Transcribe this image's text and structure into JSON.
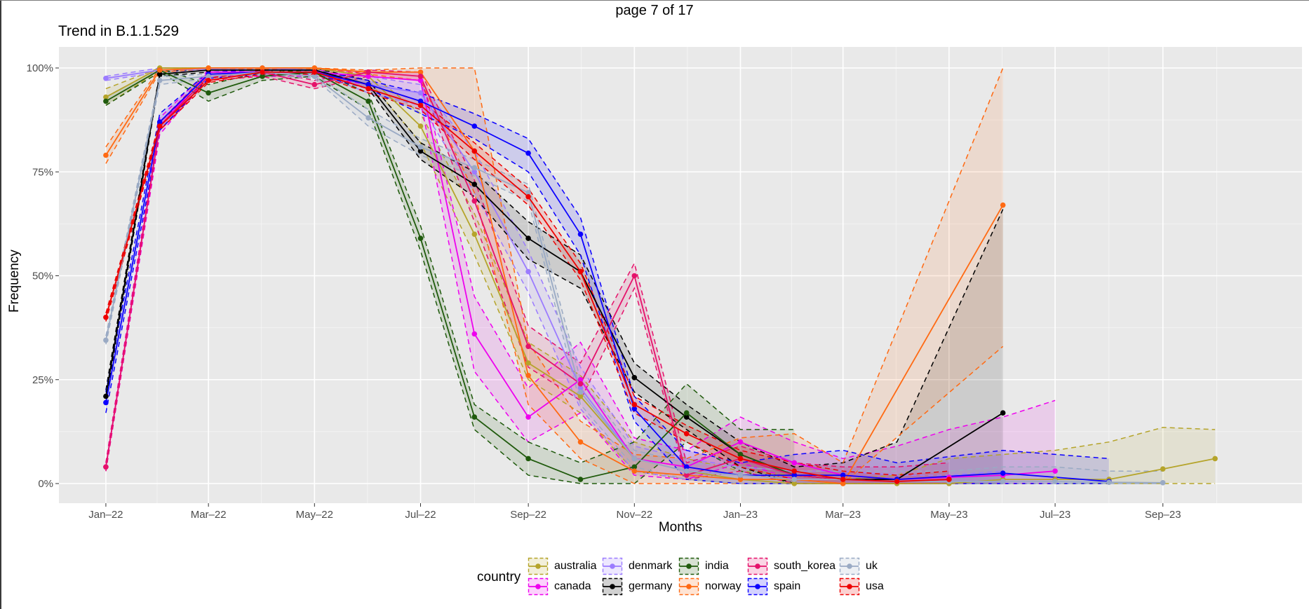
{
  "header": {
    "page_label": "page 7 of 17"
  },
  "chart_data": {
    "type": "line",
    "title": "Trend in B.1.1.529",
    "xlabel": "Months",
    "ylabel": "Frequency",
    "ylim": [
      0,
      100
    ],
    "y_ticks": [
      0,
      25,
      50,
      75,
      100
    ],
    "y_tick_labels": [
      "0%",
      "25%",
      "50%",
      "75%",
      "100%"
    ],
    "x_ticks": [
      "2022-01",
      "2022-03",
      "2022-05",
      "2022-07",
      "2022-09",
      "2022-11",
      "2023-01",
      "2023-03",
      "2023-05",
      "2023-07",
      "2023-09"
    ],
    "x_tick_labels": [
      "Jan–22",
      "Mar–22",
      "May–22",
      "Jul–22",
      "Sep–22",
      "Nov–22",
      "Jan–23",
      "Mar–23",
      "May–23",
      "Jul–23",
      "Sep–23"
    ],
    "xlim": [
      "2021-12-05",
      "2023-11-20"
    ],
    "grid": true,
    "legend_title": "country",
    "legend_position": "bottom",
    "series": [
      {
        "name": "australia",
        "color": "#b5a42a",
        "x": [
          "2022-01",
          "2022-02",
          "2022-03",
          "2022-04",
          "2022-05",
          "2022-06",
          "2022-07",
          "2022-08",
          "2022-09",
          "2022-10",
          "2022-11",
          "2022-12",
          "2023-01",
          "2023-02",
          "2023-03",
          "2023-04",
          "2023-05",
          "2023-06",
          "2023-07",
          "2023-08",
          "2023-09",
          "2023-10"
        ],
        "y": [
          93,
          100,
          100,
          100,
          100,
          98,
          86,
          60,
          29,
          21,
          6,
          3,
          1,
          0,
          0,
          0,
          0,
          1,
          1,
          1,
          3.5,
          6
        ],
        "lower": [
          91,
          99.5,
          99.8,
          99.8,
          99.8,
          97,
          82,
          55,
          25,
          17,
          3,
          1,
          0,
          0,
          0,
          0,
          0,
          0,
          0,
          0,
          0,
          0
        ],
        "upper": [
          95,
          100,
          100,
          100,
          100,
          99,
          89,
          65,
          34,
          26,
          10,
          6,
          3,
          2,
          1,
          2,
          6,
          7,
          8,
          10,
          13.5,
          13
        ]
      },
      {
        "name": "canada",
        "color": "#ee00ee",
        "x": [
          "2022-01",
          "2022-02",
          "2022-03",
          "2022-04",
          "2022-05",
          "2022-06",
          "2022-07",
          "2022-08",
          "2022-09",
          "2022-10",
          "2022-11",
          "2022-12",
          "2023-01",
          "2023-02",
          "2023-03",
          "2023-04",
          "2023-05",
          "2023-06",
          "2023-07"
        ],
        "y": [
          4,
          86,
          99,
          99,
          99,
          98,
          97,
          36,
          16,
          25,
          6,
          4,
          10,
          5,
          2,
          1,
          1.5,
          2,
          3
        ],
        "lower": [
          3,
          84,
          98,
          98,
          98,
          96,
          92,
          27,
          10,
          17,
          2,
          1,
          5,
          1,
          0,
          0,
          0,
          0,
          0
        ],
        "upper": [
          5,
          88,
          99.5,
          99.5,
          99.5,
          99,
          99,
          45,
          23,
          34,
          11,
          8,
          16,
          10,
          6,
          9,
          13,
          16,
          20
        ]
      },
      {
        "name": "denmark",
        "color": "#9b7bff",
        "x": [
          "2022-01",
          "2022-02",
          "2022-03",
          "2022-04",
          "2022-05",
          "2022-06",
          "2022-07",
          "2022-08",
          "2022-09",
          "2022-10",
          "2022-11",
          "2022-12",
          "2023-01",
          "2023-02",
          "2023-03",
          "2023-04",
          "2023-05",
          "2023-06"
        ],
        "y": [
          97.5,
          99.5,
          99.8,
          100,
          99.5,
          96,
          94,
          75,
          51,
          23,
          6,
          3,
          2,
          1,
          1,
          0.5,
          0.5,
          0.5
        ],
        "lower": [
          97,
          99,
          99.5,
          99.8,
          99,
          94,
          91,
          70,
          46,
          18,
          3,
          1,
          0,
          0,
          0,
          0,
          0,
          0
        ],
        "upper": [
          98,
          100,
          100,
          100,
          100,
          98,
          96,
          80,
          56,
          28,
          9,
          6,
          4,
          3,
          3,
          2,
          2,
          3
        ]
      },
      {
        "name": "germany",
        "color": "#000000",
        "x": [
          "2022-01",
          "2022-02",
          "2022-03",
          "2022-04",
          "2022-05",
          "2022-06",
          "2022-07",
          "2022-08",
          "2022-09",
          "2022-10",
          "2022-11",
          "2022-12",
          "2023-01",
          "2023-02",
          "2023-03",
          "2023-04",
          "2023-06"
        ],
        "y": [
          21,
          98.5,
          99.5,
          99.5,
          99.5,
          96,
          80,
          72,
          59,
          51,
          25.5,
          16,
          7,
          2,
          1,
          1,
          17
        ],
        "lower": [
          19.5,
          98,
          99,
          99,
          99,
          95,
          78,
          69,
          54,
          47,
          22,
          13,
          4,
          0,
          0,
          0,
          0
        ],
        "upper": [
          22.5,
          99,
          100,
          100,
          100,
          97,
          82,
          75,
          63,
          55,
          29,
          19,
          10,
          4,
          5,
          10,
          66
        ]
      },
      {
        "name": "india",
        "color": "#1f5a0c",
        "x": [
          "2022-01",
          "2022-02",
          "2022-03",
          "2022-04",
          "2022-05",
          "2022-06",
          "2022-07",
          "2022-08",
          "2022-09",
          "2022-10",
          "2022-11",
          "2022-12",
          "2023-01",
          "2023-02"
        ],
        "y": [
          92,
          99.5,
          94,
          98,
          99,
          92,
          59,
          16,
          6,
          1,
          4,
          17,
          7,
          2
        ],
        "lower": [
          91,
          99,
          92,
          97,
          98,
          90,
          56,
          13,
          2,
          0,
          0,
          10,
          3,
          0
        ],
        "upper": [
          93,
          100,
          96,
          99,
          99.5,
          94,
          62,
          19,
          10,
          5,
          10,
          24,
          13,
          13
        ]
      },
      {
        "name": "norway",
        "color": "#ff6a13",
        "x": [
          "2022-01",
          "2022-02",
          "2022-03",
          "2022-04",
          "2022-05",
          "2022-06",
          "2022-07",
          "2022-08",
          "2022-09",
          "2022-10",
          "2022-11",
          "2022-12",
          "2023-01",
          "2023-02",
          "2023-03",
          "2023-06"
        ],
        "y": [
          79,
          99.5,
          100,
          100,
          100,
          99,
          99,
          80,
          26,
          10,
          3,
          2,
          1,
          1,
          0,
          67
        ],
        "lower": [
          77,
          99,
          99.8,
          99.8,
          99.8,
          98.5,
          97,
          70,
          19,
          6,
          0,
          0,
          0,
          0,
          0,
          33
        ],
        "upper": [
          81,
          100,
          100,
          100,
          100,
          99.5,
          100,
          100,
          34,
          15,
          7,
          6,
          11,
          12,
          5,
          100
        ]
      },
      {
        "name": "south_korea",
        "color": "#e5116a",
        "x": [
          "2022-01",
          "2022-02",
          "2022-03",
          "2022-04",
          "2022-05",
          "2022-06",
          "2022-07",
          "2022-08",
          "2022-09",
          "2022-10",
          "2022-11",
          "2022-12",
          "2023-01",
          "2023-02",
          "2023-03",
          "2023-04",
          "2023-05"
        ],
        "y": [
          4,
          86,
          98,
          99,
          96,
          99,
          98,
          68,
          33,
          24,
          50,
          2,
          6,
          2,
          1,
          0.5,
          1
        ],
        "lower": [
          3,
          85,
          97,
          98,
          95,
          98,
          97,
          63,
          28,
          20,
          47,
          1,
          3,
          0,
          0,
          0,
          0
        ],
        "upper": [
          5,
          87,
          99,
          99.5,
          97,
          99.5,
          99,
          73,
          38,
          29,
          53,
          5,
          9,
          5,
          4,
          4,
          5
        ]
      },
      {
        "name": "spain",
        "color": "#0b00ff",
        "x": [
          "2022-01",
          "2022-02",
          "2022-03",
          "2022-04",
          "2022-05",
          "2022-06",
          "2022-07",
          "2022-08",
          "2022-09",
          "2022-10",
          "2022-11",
          "2022-12",
          "2023-01",
          "2023-02",
          "2023-03",
          "2023-04",
          "2023-06",
          "2023-08"
        ],
        "y": [
          19.5,
          87,
          98.5,
          99,
          99,
          96,
          92,
          86,
          79.5,
          60,
          18,
          4,
          2,
          2,
          2,
          1,
          2.5,
          0.5
        ],
        "lower": [
          17,
          85,
          97.5,
          98.5,
          98.5,
          95,
          89,
          83,
          75,
          55,
          15,
          1,
          0,
          0,
          0,
          0,
          0,
          0
        ],
        "upper": [
          22,
          89,
          99,
          99.5,
          99.5,
          97,
          94,
          89,
          83,
          64,
          21,
          8,
          5,
          7,
          8,
          5,
          8,
          6
        ]
      },
      {
        "name": "uk",
        "color": "#9aaac4",
        "x": [
          "2022-01",
          "2022-02",
          "2022-03",
          "2022-04",
          "2022-05",
          "2022-06",
          "2022-07",
          "2022-08",
          "2022-09",
          "2022-10",
          "2022-11",
          "2022-12",
          "2023-01",
          "2023-02",
          "2023-03",
          "2023-04",
          "2023-05",
          "2023-06",
          "2023-07",
          "2023-08",
          "2023-09"
        ],
        "y": [
          34.5,
          97,
          98,
          99,
          98,
          88,
          81,
          76,
          70,
          22,
          6,
          3,
          2,
          1,
          1,
          0.5,
          0.5,
          0.5,
          0.5,
          0.3,
          0.2
        ],
        "lower": [
          33.5,
          96,
          97.5,
          98.5,
          97.5,
          86,
          79,
          74,
          68,
          19,
          4,
          1,
          0,
          0,
          0,
          0,
          0,
          0,
          0,
          0,
          0
        ],
        "upper": [
          35.5,
          98,
          98.5,
          99.5,
          98.5,
          90,
          83,
          78,
          72,
          25,
          8,
          5,
          4,
          3,
          3,
          3,
          3,
          4,
          4,
          3,
          3
        ]
      },
      {
        "name": "usa",
        "color": "#ee0000",
        "x": [
          "2022-01",
          "2022-02",
          "2022-03",
          "2022-04",
          "2022-05",
          "2022-06",
          "2022-07",
          "2022-08",
          "2022-09",
          "2022-10",
          "2022-11",
          "2022-12",
          "2023-01",
          "2023-02",
          "2023-03",
          "2023-04",
          "2023-05"
        ],
        "y": [
          40,
          86,
          97,
          99,
          99,
          95,
          91,
          80,
          69,
          51,
          19,
          12,
          6,
          3,
          1,
          0.5,
          1
        ],
        "lower": [
          39,
          85,
          96.5,
          98.5,
          98.5,
          94,
          90,
          78,
          67,
          49,
          17,
          10,
          4,
          1,
          0,
          0,
          0
        ],
        "upper": [
          41,
          87,
          97.5,
          99.5,
          99.5,
          96,
          92,
          82,
          71,
          53,
          21,
          14,
          8,
          5,
          3,
          2,
          3
        ]
      }
    ]
  }
}
